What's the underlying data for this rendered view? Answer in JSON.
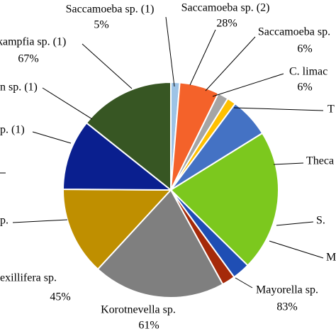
{
  "chart_data": {
    "type": "pie",
    "categories": [
      "Saccamoeba sp. (1)",
      "Saccamoeba sp. (2)",
      "Saccamoeba sp.",
      "C. limac",
      "T",
      "Theca",
      "S.",
      "M",
      "Mayorella sp.",
      "Korotnevella sp.",
      "exillifera sp.",
      null,
      null,
      "p.",
      "p. (1)",
      "n sp. (1)",
      "kampfia sp. (1)"
    ],
    "values": [
      1,
      4.5,
      1.2,
      1,
      4.5,
      16,
      2,
      1.5,
      15,
      10,
      8,
      0,
      10.8,
      0,
      0,
      0,
      0
    ],
    "percent_labels": [
      "5%",
      "28%",
      "6%",
      "6%",
      null,
      null,
      null,
      null,
      "83%",
      "61%",
      "45%",
      null,
      null,
      null,
      null,
      null,
      "67%"
    ],
    "colors": [
      "#9dc3e6",
      "#f4622a",
      "#a5a5a5",
      "#ffc000",
      "#4472c4",
      "#7cc81e",
      "#1f4eb4",
      "#a52a0a",
      "#7f7f7f",
      "#bf8f00",
      "#0a1f8f",
      "#375623",
      "#375623",
      "#9dd3f0",
      "#f4804a",
      "#a5a5a5",
      "#ffcc33"
    ]
  }
}
